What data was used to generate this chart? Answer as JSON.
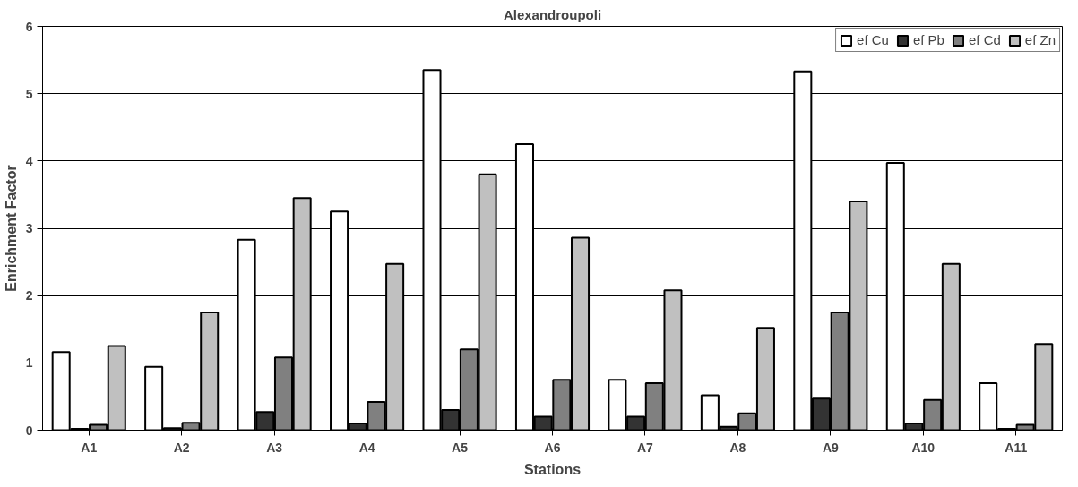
{
  "chart_data": {
    "type": "bar",
    "title": "Alexandroupoli",
    "xlabel": "Stations",
    "ylabel": "Enrichment Factor",
    "categories": [
      "A1",
      "A2",
      "A3",
      "A4",
      "A5",
      "A6",
      "A7",
      "A8",
      "A9",
      "A10",
      "A11"
    ],
    "series": [
      {
        "name": "ef Cu",
        "color": "#ffffff",
        "values": [
          1.16,
          0.94,
          2.83,
          3.25,
          5.35,
          4.25,
          0.75,
          0.52,
          5.33,
          3.97,
          0.7
        ]
      },
      {
        "name": "ef Pb",
        "color": "#333333",
        "values": [
          0.02,
          0.03,
          0.27,
          0.1,
          0.3,
          0.2,
          0.2,
          0.05,
          0.47,
          0.1,
          0.02
        ]
      },
      {
        "name": "ef Cd",
        "color": "#808080",
        "values": [
          0.08,
          0.11,
          1.08,
          0.42,
          1.2,
          0.75,
          0.7,
          0.25,
          1.75,
          0.45,
          0.08
        ]
      },
      {
        "name": "ef Zn",
        "color": "#c0c0c0",
        "values": [
          1.25,
          1.75,
          3.45,
          2.47,
          3.8,
          2.86,
          2.08,
          1.52,
          3.4,
          2.47,
          1.28
        ]
      }
    ],
    "ylim": [
      0,
      6
    ],
    "yticks": [
      0,
      1,
      2,
      3,
      4,
      5,
      6
    ],
    "grid": "y",
    "legend": "top right"
  }
}
